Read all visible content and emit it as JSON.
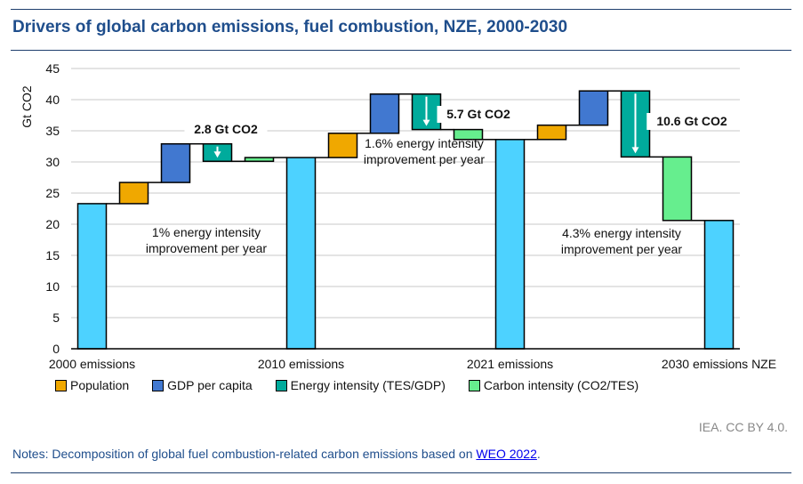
{
  "title": "Drivers of global carbon emissions, fuel combustion, NZE, 2000-2030",
  "chart_data": {
    "type": "waterfall",
    "ylabel": "Gt CO2",
    "ylim": [
      0,
      45
    ],
    "yticks": [
      0,
      5,
      10,
      15,
      20,
      25,
      30,
      35,
      40,
      45
    ],
    "grid": true,
    "legend_position": "bottom",
    "colors": {
      "total": "#4dd2ff",
      "Population": "#f0a800",
      "GDP per capita": "#4178d0",
      "Energy intensity (TES/GDP)": "#00ab9c",
      "Carbon intensity (CO2/TES)": "#66ee8e"
    },
    "legend": [
      "Population",
      "GDP per capita",
      "Energy intensity (TES/GDP)",
      "Carbon intensity (CO2/TES)"
    ],
    "bars": [
      {
        "kind": "total",
        "label": "2000 emissions",
        "value": 23.3
      },
      {
        "kind": "Population",
        "value": 3.4
      },
      {
        "kind": "GDP per capita",
        "value": 6.2
      },
      {
        "kind": "Energy intensity (TES/GDP)",
        "value": -2.8,
        "arrow": true
      },
      {
        "kind": "Carbon intensity (CO2/TES)",
        "value": 0.6
      },
      {
        "kind": "total",
        "label": "2010 emissions",
        "value": 30.7
      },
      {
        "kind": "Population",
        "value": 3.9
      },
      {
        "kind": "GDP per capita",
        "value": 6.3
      },
      {
        "kind": "Energy intensity (TES/GDP)",
        "value": -5.7,
        "arrow": true
      },
      {
        "kind": "Carbon intensity (CO2/TES)",
        "value": -1.6
      },
      {
        "kind": "total",
        "label": "2021 emissions",
        "value": 33.6
      },
      {
        "kind": "Population",
        "value": 2.3
      },
      {
        "kind": "GDP per capita",
        "value": 5.5
      },
      {
        "kind": "Energy intensity (TES/GDP)",
        "value": -10.6,
        "arrow": true
      },
      {
        "kind": "Carbon intensity (CO2/TES)",
        "value": -10.2
      },
      {
        "kind": "total",
        "label": "2030 emissions NZE",
        "value": 20.6
      }
    ],
    "annotations": [
      {
        "text": "2.8 Gt CO2",
        "bold": true
      },
      {
        "text": "5.7 Gt CO2",
        "bold": true
      },
      {
        "text": "10.6 Gt CO2",
        "bold": true
      },
      {
        "text": "1% energy intensity improvement per year",
        "lines": [
          "1% energy intensity",
          "improvement per year"
        ]
      },
      {
        "text": "1.6% energy intensity improvement per year",
        "lines": [
          "1.6% energy intensity",
          "improvement per year"
        ]
      },
      {
        "text": "4.3% energy intensity improvement per year",
        "lines": [
          "4.3% energy intensity",
          "improvement per year"
        ]
      }
    ]
  },
  "source": "IEA. CC BY 4.0.",
  "notes": {
    "prefix": "Notes: Decomposition of global fuel combustion-related carbon emissions based on ",
    "link": "WEO 2022",
    "suffix": "."
  }
}
